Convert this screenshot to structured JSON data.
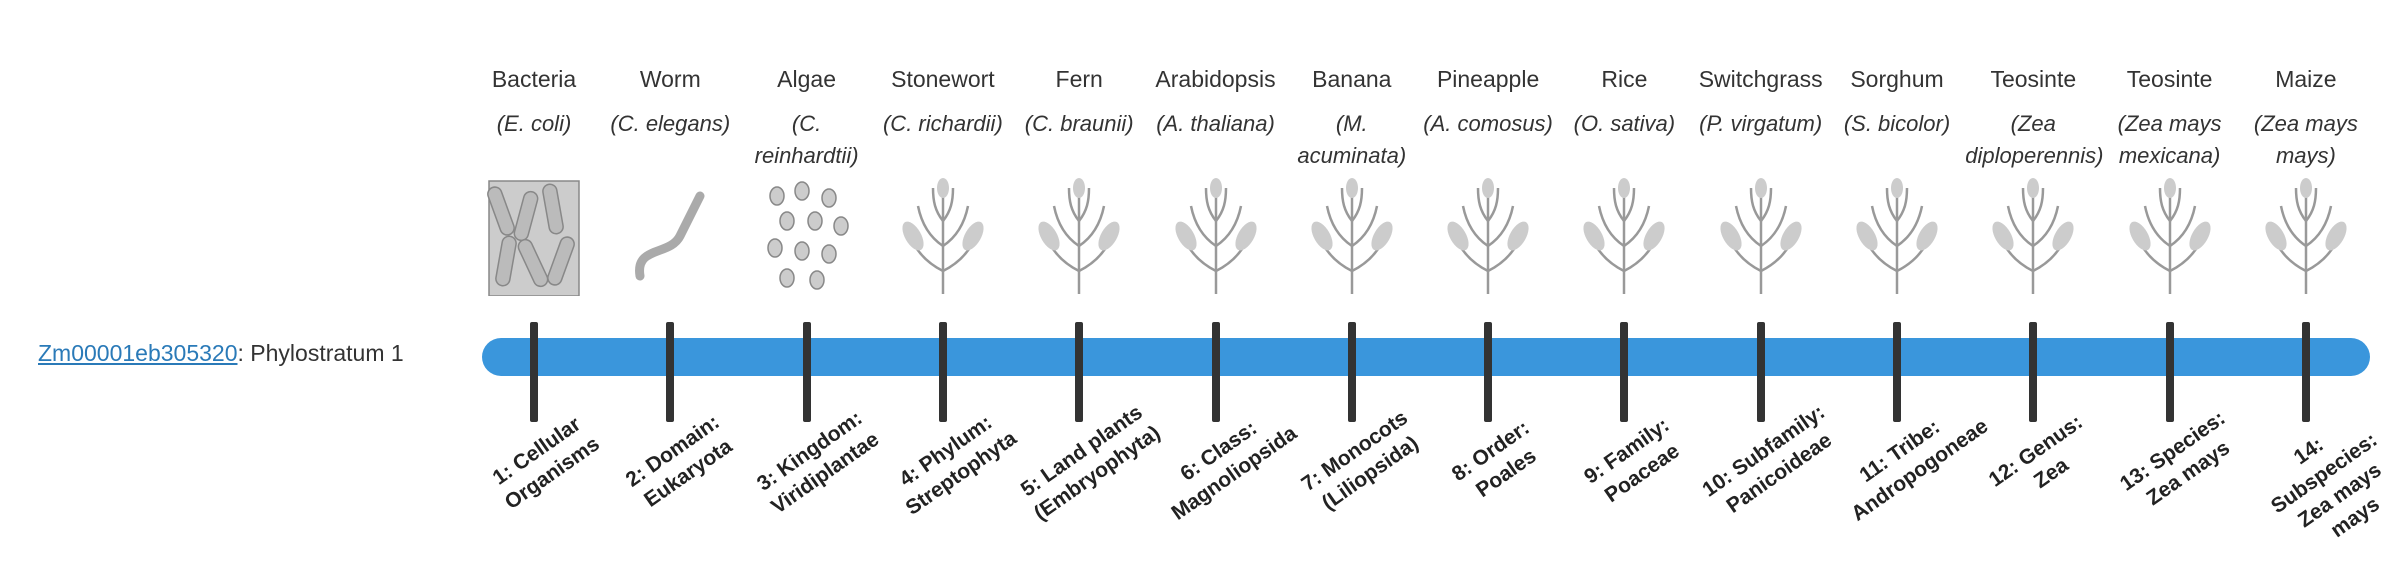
{
  "gene": {
    "id": "Zm00001eb305320",
    "label": ": Phylostratum 1"
  },
  "strata": [
    {
      "common": "Bacteria",
      "scientific": "(E. coli)",
      "label": "1: Cellular Organisms"
    },
    {
      "common": "Worm",
      "scientific": "(C. elegans)",
      "label": "2: Domain: Eukaryota"
    },
    {
      "common": "Algae",
      "scientific": "(C. reinhardtii)",
      "label": "3: Kingdom: Viridiplantae"
    },
    {
      "common": "Stonewort",
      "scientific": "(C. richardii)",
      "label": "4: Phylum: Streptophyta"
    },
    {
      "common": "Fern",
      "scientific": "(C. braunii)",
      "label": "5: Land plants (Embryophyta)"
    },
    {
      "common": "Arabidopsis",
      "scientific": "(A. thaliana)",
      "label": "6: Class: Magnoliopsida"
    },
    {
      "common": "Banana",
      "scientific": "(M. acuminata)",
      "label": "7: Monocots (Liliopsida)"
    },
    {
      "common": "Pineapple",
      "scientific": "(A. comosus)",
      "label": "8: Order: Poales"
    },
    {
      "common": "Rice",
      "scientific": "(O. sativa)",
      "label": "9: Family: Poaceae"
    },
    {
      "common": "Switchgrass",
      "scientific": "(P. virgatum)",
      "label": "10: Subfamily: Panicoideae"
    },
    {
      "common": "Sorghum",
      "scientific": "(S. bicolor)",
      "label": "11: Tribe: Andropogoneae"
    },
    {
      "common": "Teosinte",
      "scientific": "(Zea diploperennis)",
      "label": "12: Genus: Zea"
    },
    {
      "common": "Teosinte",
      "scientific": "(Zea mays mexicana)",
      "label": "13: Species: Zea mays"
    },
    {
      "common": "Maize",
      "scientific": "(Zea mays mays)",
      "label": "14: Subspecies: Zea mays mays"
    }
  ]
}
